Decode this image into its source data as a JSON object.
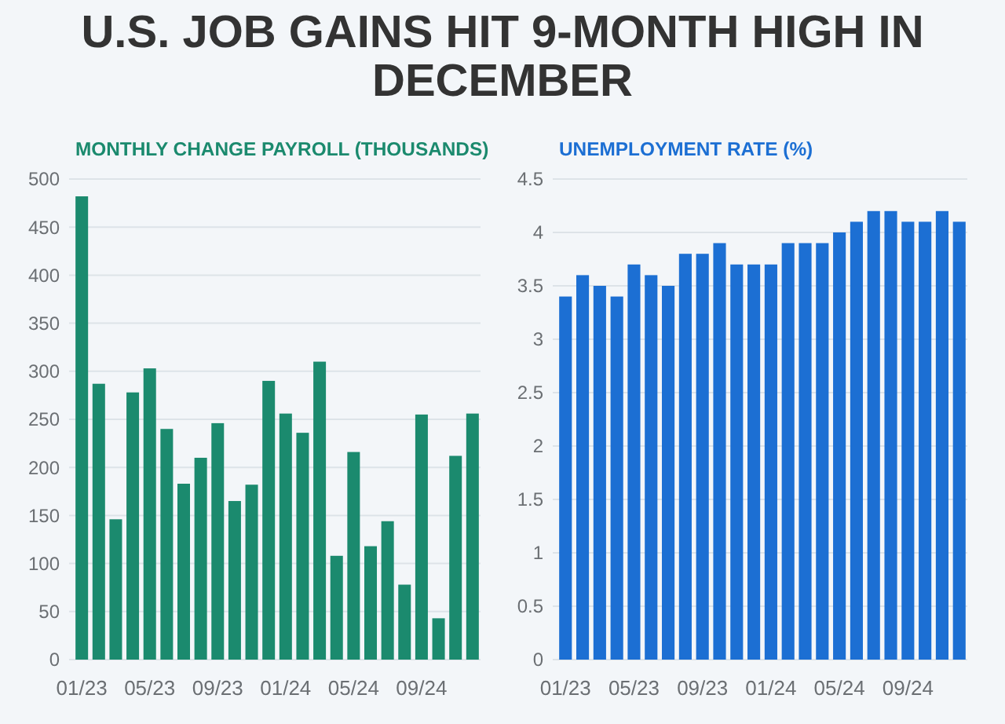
{
  "chart_data": [
    {
      "type": "other",
      "title": "U.S. JOB GAINS HIT 9-MONTH HIGH IN DECEMBER"
    },
    {
      "type": "bar",
      "title": "MONTHLY CHANGE PAYROLL (THOUSANDS)",
      "categories": [
        "01/23",
        null,
        null,
        null,
        "05/23",
        null,
        null,
        null,
        "09/23",
        null,
        null,
        null,
        "01/24",
        null,
        null,
        null,
        "05/24",
        null,
        null,
        null,
        "09/24",
        null,
        null,
        null
      ],
      "values": [
        482,
        287,
        146,
        278,
        303,
        240,
        183,
        210,
        246,
        165,
        182,
        290,
        256,
        236,
        310,
        108,
        216,
        118,
        144,
        78,
        255,
        43,
        212,
        256
      ],
      "color": "#1b8a6e",
      "ylim": [
        0,
        500
      ],
      "yticks": [
        0,
        50,
        100,
        150,
        200,
        250,
        300,
        350,
        400,
        450,
        500
      ],
      "grid": "y"
    },
    {
      "type": "bar",
      "title": "UNEMPLOYMENT RATE (%)",
      "categories": [
        "01/23",
        null,
        null,
        null,
        "05/23",
        null,
        null,
        null,
        "09/23",
        null,
        null,
        null,
        "01/24",
        null,
        null,
        null,
        "05/24",
        null,
        null,
        null,
        "09/24",
        null,
        null,
        null
      ],
      "values": [
        3.4,
        3.6,
        3.5,
        3.4,
        3.7,
        3.6,
        3.5,
        3.8,
        3.8,
        3.9,
        3.7,
        3.7,
        3.7,
        3.9,
        3.9,
        3.9,
        4.0,
        4.1,
        4.2,
        4.2,
        4.1,
        4.1,
        4.2,
        4.1
      ],
      "color": "#1c6fd3",
      "ylim": [
        0,
        4.5
      ],
      "yticks": [
        0,
        0.5,
        1,
        1.5,
        2,
        2.5,
        3,
        3.5,
        4,
        4.5
      ],
      "grid": "y"
    }
  ]
}
